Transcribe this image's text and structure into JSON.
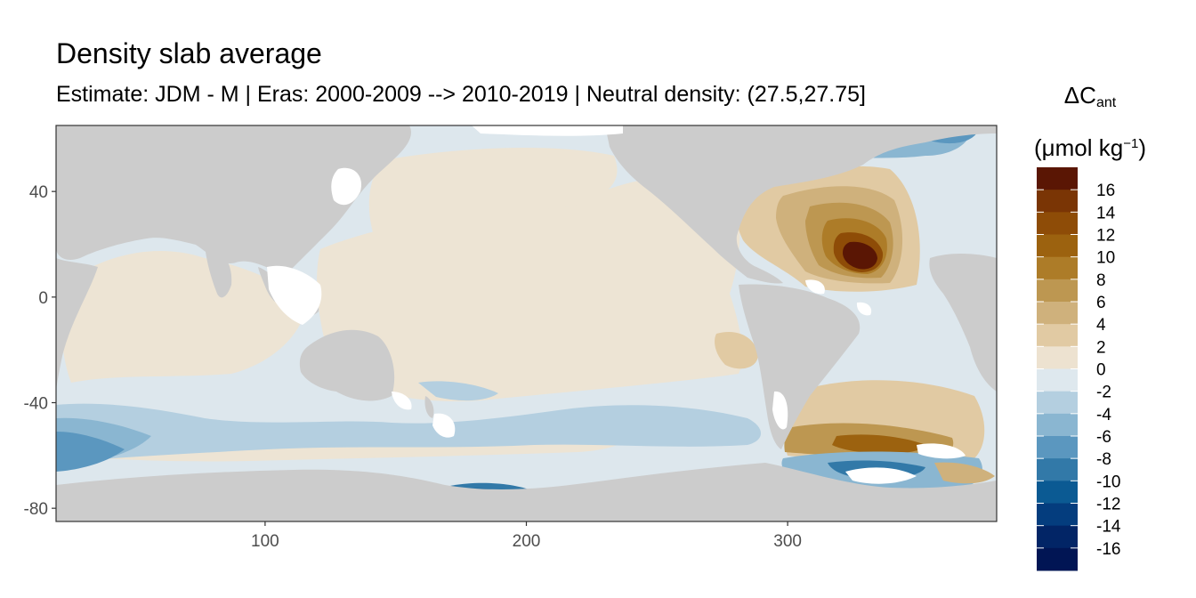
{
  "title": "Density slab average",
  "subtitle": "Estimate: JDM - M | Eras: 2000-2009 --> 2010-2019 | Neutral density: (27.5,27.75]",
  "legend": {
    "symbol": "ΔC",
    "symbol_sub": "ant",
    "unit_open": "(μmol kg",
    "unit_sup": "−1",
    "unit_close": ")",
    "labels": [
      "16",
      "14",
      "12",
      "10",
      "8",
      "6",
      "4",
      "2",
      "0",
      "-2",
      "-4",
      "-6",
      "-8",
      "-10",
      "-12",
      "-14",
      "-16"
    ],
    "colors": [
      "#5a1604",
      "#7a3505",
      "#8e4c07",
      "#9c620f",
      "#ad7c28",
      "#bd9751",
      "#cfb17c",
      "#e1caa3",
      "#ede2d0",
      "#dee8ee",
      "#b4cfe0",
      "#8ab6d1",
      "#5b97bf",
      "#3279a8",
      "#0b5a93",
      "#043d7e",
      "#022566",
      "#011554"
    ]
  },
  "colors": {
    "land": "#cccccc",
    "missing": "#ffffff",
    "ocean_zero_pos": "#ede4d4",
    "ocean_zero_neg": "#dde7ed"
  },
  "chart_data": {
    "type": "heatmap",
    "xlabel": "",
    "ylabel": "",
    "xlim": [
      20,
      380
    ],
    "ylim": [
      -85,
      65
    ],
    "x_ticks": [
      100,
      200,
      300
    ],
    "y_ticks": [
      40,
      0,
      -40,
      -80
    ],
    "grid": false,
    "legend_position": "right",
    "value_range": [
      -18,
      18
    ],
    "contour_step": 2
  }
}
